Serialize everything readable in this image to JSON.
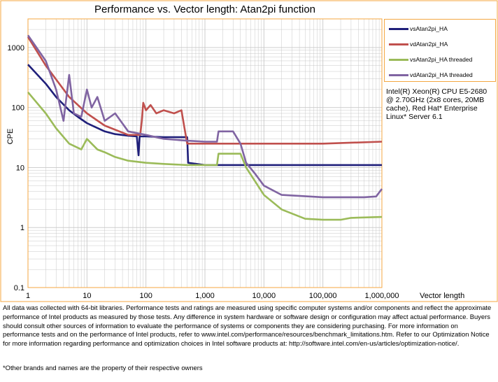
{
  "chart_data": {
    "type": "line",
    "title": "Performance vs. Vector length: Atan2pi function",
    "xlabel": "Vector length",
    "ylabel": "CPE",
    "xscale": "log",
    "yscale": "log",
    "xlim": [
      1,
      1000000
    ],
    "ylim": [
      0.1,
      3000
    ],
    "xticks": [
      {
        "v": 1,
        "label": "1"
      },
      {
        "v": 10,
        "label": "10"
      },
      {
        "v": 100,
        "label": "100"
      },
      {
        "v": 1000,
        "label": "1,000"
      },
      {
        "v": 10000,
        "label": "10,000"
      },
      {
        "v": 100000,
        "label": "100,000"
      },
      {
        "v": 1000000,
        "label": "1,000,000"
      }
    ],
    "yticks": [
      {
        "v": 0.1,
        "label": "0.1"
      },
      {
        "v": 1,
        "label": "1"
      },
      {
        "v": 10,
        "label": "10"
      },
      {
        "v": 100,
        "label": "100"
      },
      {
        "v": 1000,
        "label": "1000"
      }
    ],
    "grid": true,
    "legend_position": "right",
    "series": [
      {
        "name": "vsAtan2pi_HA",
        "color": "#1f1f7a",
        "x": [
          1,
          2,
          3,
          5,
          7,
          10,
          20,
          30,
          50,
          70,
          75,
          78,
          80,
          100,
          200,
          400,
          500,
          520,
          1000,
          3000,
          10000,
          100000,
          1000000
        ],
        "y": [
          520,
          250,
          150,
          90,
          70,
          55,
          40,
          36,
          34,
          33,
          16,
          33,
          33,
          33,
          32,
          32,
          32,
          12,
          11,
          11,
          11,
          11,
          11
        ]
      },
      {
        "name": "vdAtan2pi_HA",
        "color": "#c0504d",
        "x": [
          1,
          2,
          5,
          10,
          20,
          50,
          80,
          85,
          90,
          100,
          120,
          150,
          200,
          300,
          400,
          500,
          520,
          1000,
          10000,
          100000,
          1000000
        ],
        "y": [
          1500,
          500,
          150,
          80,
          50,
          35,
          35,
          60,
          120,
          90,
          110,
          80,
          90,
          80,
          90,
          25,
          25,
          25,
          25,
          25,
          27
        ]
      },
      {
        "name": "vsAtan2pi_HA threaded",
        "color": "#9bbb59",
        "x": [
          1,
          2,
          3,
          5,
          8,
          10,
          15,
          20,
          30,
          50,
          100,
          200,
          500,
          1000,
          1600,
          1700,
          3000,
          4000,
          5000,
          7000,
          10000,
          20000,
          50000,
          100000,
          200000,
          300000,
          1000000
        ],
        "y": [
          180,
          80,
          45,
          25,
          20,
          30,
          20,
          18,
          15,
          13,
          12,
          11.5,
          11,
          11,
          11,
          17,
          17,
          17,
          10,
          6,
          3.5,
          2,
          1.4,
          1.35,
          1.35,
          1.45,
          1.5
        ]
      },
      {
        "name": "vdAtan2pi_HA threaded",
        "color": "#8064a2",
        "x": [
          1,
          2,
          3,
          4,
          5,
          6,
          8,
          10,
          12,
          15,
          20,
          30,
          50,
          100,
          200,
          500,
          1000,
          1600,
          1700,
          3000,
          4000,
          5000,
          7000,
          10000,
          20000,
          100000,
          200000,
          500000,
          800000,
          1000000
        ],
        "y": [
          1600,
          600,
          200,
          60,
          350,
          80,
          70,
          200,
          100,
          150,
          60,
          80,
          40,
          35,
          30,
          28,
          27,
          27,
          40,
          40,
          25,
          12,
          8,
          5,
          3.5,
          3.2,
          3.2,
          3.2,
          3.3,
          4.4
        ]
      }
    ]
  },
  "note": "Intel(R) Xeon(R) CPU E5-2680 @ 2.70GHz (2x8 cores, 20MB cache), Red Hat* Enterprise Linux* Server 6.1",
  "footer": "All data was collected with 64-bit libraries. Performance tests and ratings are measured using specific computer systems and/or components and reflect the approximate performance of Intel products as measured by those tests. Any difference in system hardware or software design or configuration may affect actual performance. Buyers should consult other sources of information to evaluate the performance of systems or components they are considering purchasing. For more information on performance tests and on the performance of Intel products, refer to www.intel.com/performance/resources/benchmark_limitations.htm. Refer to our Optimization Notice for more information regarding performance and optimization choices in Intel software products at: http://software.intel.com/en-us/articles/optimization-notice/.",
  "footer_trademark": "*Other brands and names are the property of their respective owners",
  "colors": {
    "frame": "#f4a742",
    "grid": "#c8c8c8"
  }
}
